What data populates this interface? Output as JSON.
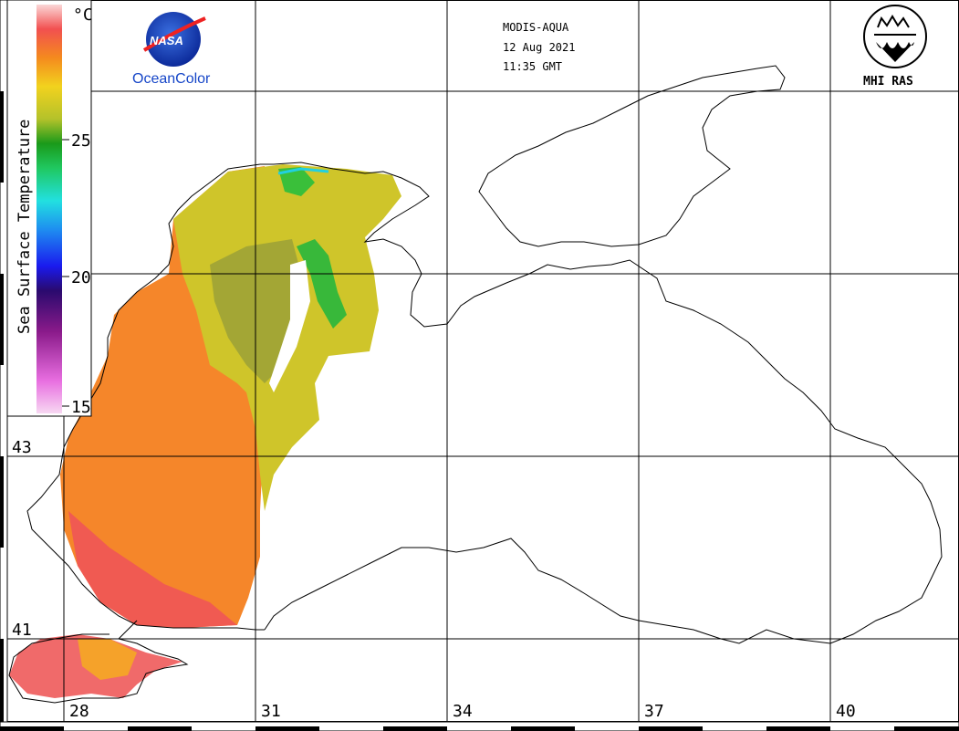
{
  "header": {
    "satellite": "MODIS-AQUA",
    "date": "12 Aug 2021",
    "time": "11:35 GMT"
  },
  "logos": {
    "nasa_word": "NASA",
    "nasa_caption": "OceanColor",
    "mhi_caption": "MHI RAS"
  },
  "colorbar": {
    "title": "Sea Surface Temperature",
    "unit": "°C",
    "ticks": [
      "25",
      "20",
      "15"
    ]
  },
  "grid": {
    "longitudes": [
      "28",
      "31",
      "34",
      "37",
      "40"
    ],
    "latitudes": [
      "43",
      "41"
    ]
  },
  "colors": {
    "land_outline": "#000000",
    "background": "#ffffff",
    "warm_sst": "#f78a2e",
    "hot_sst": "#f25e5e",
    "mid_sst": "#d6cf2a",
    "cool_sst": "#3bbf3b"
  }
}
